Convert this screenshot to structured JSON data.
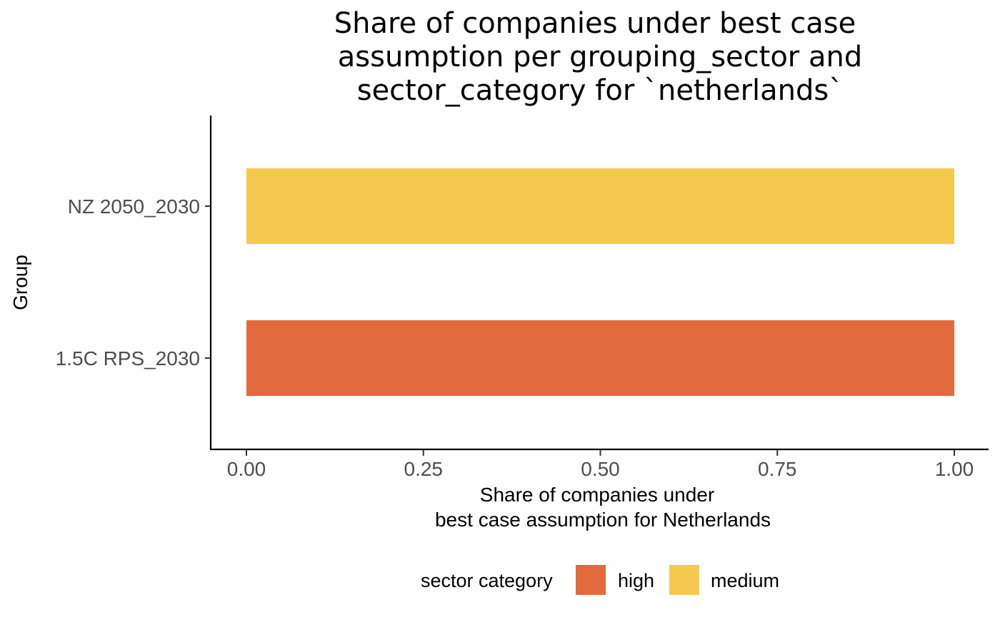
{
  "chart_data": {
    "type": "bar",
    "orientation": "horizontal",
    "title_lines": [
      "Share of companies under best case",
      "assumption per grouping_sector and",
      "sector_category for `netherlands`"
    ],
    "xlabel_lines": [
      "Share of companies under",
      "best case assumption for Netherlands"
    ],
    "ylabel": "Group",
    "xlim": [
      0,
      1
    ],
    "x_ticks": [
      {
        "value": 0,
        "label": "0.00"
      },
      {
        "value": 0.25,
        "label": "0.25"
      },
      {
        "value": 0.5,
        "label": "0.50"
      },
      {
        "value": 0.75,
        "label": "0.75"
      },
      {
        "value": 1,
        "label": "1.00"
      }
    ],
    "categories": [
      "1.5C RPS_2030",
      "NZ 2050_2030"
    ],
    "bars": [
      {
        "category": "1.5C RPS_2030",
        "value": 1.0,
        "sector_category": "high"
      },
      {
        "category": "NZ 2050_2030",
        "value": 1.0,
        "sector_category": "medium"
      }
    ],
    "legend": {
      "title": "sector category",
      "position": "bottom",
      "items": [
        {
          "label": "high",
          "color": "#E36A3C"
        },
        {
          "label": "medium",
          "color": "#F5C94E"
        }
      ]
    },
    "grid": false
  }
}
